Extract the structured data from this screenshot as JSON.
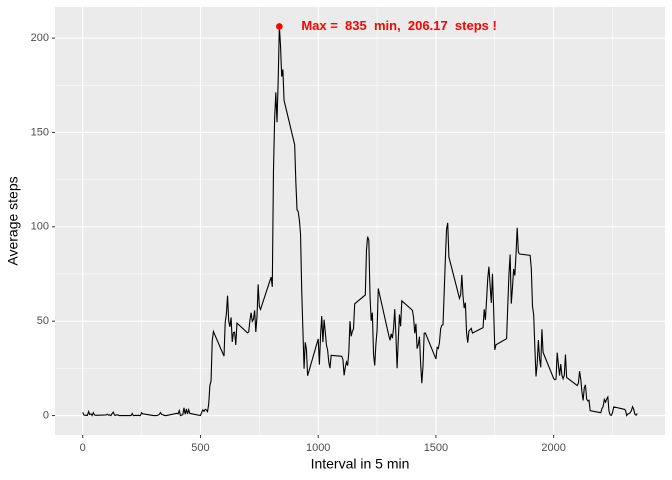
{
  "chart_data": {
    "type": "line",
    "x_label": "Interval in 5 min",
    "y_label": "Average steps",
    "annotation": "Max =  835  min,  206.17  steps !",
    "annotation_point": {
      "x": 835,
      "y": 206.17,
      "color": "#ff0000"
    },
    "xlim": [
      -117.75,
      2472.75
    ],
    "ylim": [
      -10.31,
      216.48
    ],
    "xticks": [
      0,
      500,
      1000,
      1500,
      2000
    ],
    "yticks": [
      0,
      50,
      100,
      150,
      200
    ],
    "xminor": [
      250,
      750,
      1250,
      1750,
      2250
    ],
    "yminor": [
      25,
      75,
      125,
      175
    ],
    "grid": true,
    "series": [
      {
        "color": "#000000",
        "x": [
          0,
          5,
          10,
          15,
          20,
          25,
          30,
          35,
          40,
          45,
          50,
          55,
          100,
          105,
          110,
          115,
          120,
          125,
          130,
          135,
          140,
          145,
          150,
          155,
          200,
          205,
          210,
          215,
          220,
          225,
          230,
          235,
          240,
          245,
          250,
          255,
          300,
          305,
          310,
          315,
          320,
          325,
          330,
          335,
          340,
          345,
          350,
          355,
          400,
          405,
          410,
          415,
          420,
          425,
          430,
          435,
          440,
          445,
          450,
          455,
          500,
          505,
          510,
          515,
          520,
          525,
          530,
          535,
          540,
          545,
          550,
          555,
          600,
          605,
          610,
          615,
          620,
          625,
          630,
          635,
          640,
          645,
          650,
          655,
          700,
          705,
          710,
          715,
          720,
          725,
          730,
          735,
          740,
          745,
          750,
          755,
          800,
          805,
          810,
          815,
          820,
          825,
          830,
          835,
          840,
          845,
          850,
          855,
          900,
          905,
          910,
          915,
          920,
          925,
          930,
          935,
          940,
          945,
          950,
          955,
          1000,
          1005,
          1010,
          1015,
          1020,
          1025,
          1030,
          1035,
          1040,
          1045,
          1050,
          1055,
          1100,
          1105,
          1110,
          1115,
          1120,
          1125,
          1130,
          1135,
          1140,
          1145,
          1150,
          1155,
          1200,
          1205,
          1210,
          1215,
          1220,
          1225,
          1230,
          1235,
          1240,
          1245,
          1250,
          1255,
          1300,
          1305,
          1310,
          1315,
          1320,
          1325,
          1330,
          1335,
          1340,
          1345,
          1350,
          1355,
          1400,
          1405,
          1410,
          1415,
          1420,
          1425,
          1430,
          1435,
          1440,
          1445,
          1450,
          1455,
          1500,
          1505,
          1510,
          1515,
          1520,
          1525,
          1530,
          1535,
          1540,
          1545,
          1550,
          1555,
          1600,
          1605,
          1610,
          1615,
          1620,
          1625,
          1630,
          1635,
          1640,
          1645,
          1650,
          1655,
          1700,
          1705,
          1710,
          1715,
          1720,
          1725,
          1730,
          1735,
          1740,
          1745,
          1750,
          1755,
          1800,
          1805,
          1810,
          1815,
          1820,
          1825,
          1830,
          1835,
          1840,
          1845,
          1850,
          1855,
          1900,
          1905,
          1910,
          1915,
          1920,
          1925,
          1930,
          1935,
          1940,
          1945,
          1950,
          1955,
          2000,
          2005,
          2010,
          2015,
          2020,
          2025,
          2030,
          2035,
          2040,
          2045,
          2050,
          2055,
          2100,
          2105,
          2110,
          2115,
          2120,
          2125,
          2130,
          2135,
          2140,
          2145,
          2150,
          2155,
          2200,
          2205,
          2210,
          2215,
          2220,
          2225,
          2230,
          2235,
          2240,
          2245,
          2250,
          2255,
          2300,
          2305,
          2310,
          2315,
          2320,
          2325,
          2330,
          2335,
          2340,
          2345,
          2350,
          2355
        ],
        "values": [
          1.7,
          0.3,
          0.1,
          0.2,
          0.1,
          2.1,
          0.5,
          0.9,
          0,
          1.5,
          0.3,
          0.1,
          0.3,
          0.7,
          0.2,
          0.3,
          0,
          1.1,
          1.8,
          0.2,
          0.2,
          0.4,
          0.3,
          0,
          0,
          0,
          1.1,
          0,
          0,
          0.1,
          0,
          0.2,
          0,
          0,
          1.5,
          0.9,
          0,
          0,
          0,
          0,
          0.2,
          0.6,
          1.6,
          0.6,
          0.5,
          0.1,
          0,
          0,
          1.2,
          0.9,
          2.6,
          0,
          0.3,
          0.4,
          4.1,
          0.7,
          3.5,
          0.8,
          3.1,
          1.1,
          0,
          1.6,
          3,
          2.2,
          3.3,
          3,
          2.1,
          6.1,
          16,
          18.3,
          39.5,
          44.5,
          31.5,
          49.3,
          53.8,
          63.5,
          50,
          47,
          52,
          39,
          44,
          44.2,
          37.4,
          49,
          43.8,
          44.4,
          50.5,
          54.5,
          49.9,
          51,
          55.7,
          44.3,
          52.3,
          69.5,
          57.8,
          56.2,
          73.4,
          68.2,
          129.4,
          157.5,
          171.2,
          155.4,
          177.3,
          206.17,
          195.9,
          179.6,
          183.4,
          167,
          143.5,
          124,
          109.1,
          108.1,
          103.7,
          96,
          66.2,
          45.2,
          24.8,
          38.8,
          35,
          21.1,
          40.6,
          27,
          42.4,
          52.7,
          38.9,
          50.8,
          44.3,
          37.4,
          34.7,
          28.3,
          25.1,
          31.9,
          31.4,
          29.7,
          21.3,
          25.5,
          28.4,
          26.5,
          33.4,
          50,
          42,
          44.6,
          46,
          59.2,
          63.9,
          87.7,
          94.8,
          92.8,
          63.4,
          50.2,
          54.5,
          32.4,
          26.5,
          37.7,
          45.1,
          67.3,
          42.3,
          39.9,
          43.3,
          41,
          46.2,
          56.4,
          42.8,
          25.1,
          40,
          53.5,
          47.3,
          60.8,
          55.8,
          52,
          43.6,
          48.7,
          35.5,
          37.5,
          41.8,
          27.5,
          17.1,
          26.1,
          43.6,
          43.8,
          30,
          36.1,
          35.5,
          38.8,
          46,
          47.8,
          48.1,
          65.3,
          82.9,
          98.7,
          102.1,
          84,
          62.1,
          64.1,
          74.5,
          63.2,
          56.9,
          59.8,
          43.9,
          38.6,
          44.7,
          45.5,
          46.2,
          43.7,
          46.6,
          56.3,
          50.7,
          61.2,
          72.7,
          78.9,
          68.9,
          59.7,
          75.1,
          56.5,
          34.8,
          37.5,
          40.7,
          58,
          74.7,
          85.3,
          59.3,
          67.8,
          77.7,
          74.2,
          85.3,
          99.5,
          86.6,
          85.6,
          84.9,
          77.8,
          58,
          53.4,
          36.3,
          20.7,
          27.4,
          40,
          30.2,
          25.5,
          45.7,
          33.5,
          19.6,
          19,
          19.3,
          33.3,
          26.8,
          21.2,
          27.3,
          21.3,
          19.5,
          21.3,
          32.3,
          20.2,
          15.9,
          17.2,
          23.5,
          19.2,
          12.5,
          8,
          14.7,
          16.3,
          8.7,
          7.8,
          8.1,
          2.6,
          1.5,
          3.7,
          4.8,
          8.5,
          7.1,
          8.7,
          9.8,
          2.2,
          0.3,
          0.1,
          1.6,
          4.6,
          3.3,
          2.8,
          0,
          0.8,
          1,
          1.6,
          2.6,
          4.7,
          3.3,
          0.6,
          0.2,
          1.1
        ]
      }
    ]
  }
}
